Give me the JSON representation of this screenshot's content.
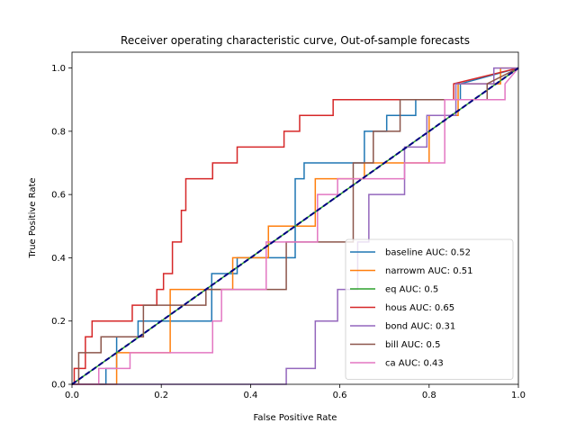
{
  "chart_data": {
    "type": "line",
    "title": "Receiver operating characteristic curve, Out-of-sample forecasts",
    "xlabel": "False Positive Rate",
    "ylabel": "True Positive Rate",
    "xlim": [
      0,
      1
    ],
    "ylim": [
      0,
      1.05
    ],
    "xticks": [
      "0.0",
      "0.2",
      "0.4",
      "0.6",
      "0.8",
      "1.0"
    ],
    "yticks": [
      "0.0",
      "0.2",
      "0.4",
      "0.6",
      "0.8",
      "1.0"
    ],
    "grid": false,
    "legend_position": "lower-right",
    "reference_line": {
      "x": [
        0,
        1
      ],
      "y": [
        0,
        1
      ],
      "color": "#000080",
      "style": "dashed"
    },
    "series": [
      {
        "name": "baseline AUC: 0.52",
        "color": "#1f77b4",
        "x": [
          0,
          0.076,
          0.076,
          0.1,
          0.1,
          0.148,
          0.148,
          0.313,
          0.313,
          0.37,
          0.37,
          0.5,
          0.5,
          0.52,
          0.52,
          0.655,
          0.655,
          0.705,
          0.705,
          0.77,
          0.77,
          0.87,
          0.87,
          1.0
        ],
        "y": [
          0,
          0,
          0.05,
          0.05,
          0.15,
          0.15,
          0.2,
          0.2,
          0.35,
          0.35,
          0.4,
          0.4,
          0.65,
          0.65,
          0.7,
          0.7,
          0.8,
          0.8,
          0.85,
          0.85,
          0.9,
          0.9,
          0.95,
          1.0
        ]
      },
      {
        "name": "narrowm AUC: 0.51",
        "color": "#ff7f0e",
        "x": [
          0,
          0.1,
          0.1,
          0.22,
          0.22,
          0.36,
          0.36,
          0.44,
          0.44,
          0.545,
          0.545,
          0.655,
          0.655,
          0.8,
          0.8,
          0.865,
          0.865,
          0.96,
          0.96,
          1.0
        ],
        "y": [
          0,
          0,
          0.1,
          0.1,
          0.3,
          0.3,
          0.4,
          0.4,
          0.5,
          0.5,
          0.65,
          0.65,
          0.7,
          0.7,
          0.85,
          0.85,
          0.95,
          0.95,
          1.0,
          1.0
        ]
      },
      {
        "name": "eq AUC: 0.5",
        "color": "#2ca02c",
        "x": [
          0,
          1
        ],
        "y": [
          0,
          1
        ]
      },
      {
        "name": "hous AUC: 0.65",
        "color": "#d62728",
        "x": [
          0,
          0.005,
          0.005,
          0.03,
          0.03,
          0.045,
          0.045,
          0.135,
          0.135,
          0.19,
          0.19,
          0.205,
          0.205,
          0.225,
          0.225,
          0.245,
          0.245,
          0.255,
          0.255,
          0.315,
          0.315,
          0.37,
          0.37,
          0.475,
          0.475,
          0.51,
          0.51,
          0.585,
          0.585,
          0.855,
          0.855,
          1.0
        ],
        "y": [
          0,
          0,
          0.05,
          0.05,
          0.15,
          0.15,
          0.2,
          0.2,
          0.25,
          0.25,
          0.3,
          0.3,
          0.35,
          0.35,
          0.45,
          0.45,
          0.55,
          0.55,
          0.65,
          0.65,
          0.7,
          0.7,
          0.75,
          0.75,
          0.8,
          0.8,
          0.85,
          0.85,
          0.9,
          0.9,
          0.95,
          1.0
        ]
      },
      {
        "name": "bond AUC: 0.31",
        "color": "#9467bd",
        "x": [
          0,
          0.48,
          0.48,
          0.545,
          0.545,
          0.595,
          0.595,
          0.64,
          0.64,
          0.665,
          0.665,
          0.745,
          0.745,
          0.795,
          0.795,
          0.86,
          0.86,
          0.945,
          0.945,
          1.0
        ],
        "y": [
          0,
          0,
          0.05,
          0.05,
          0.2,
          0.2,
          0.3,
          0.3,
          0.45,
          0.45,
          0.6,
          0.6,
          0.75,
          0.75,
          0.85,
          0.85,
          0.95,
          0.95,
          1.0,
          1.0
        ]
      },
      {
        "name": "bill AUC: 0.5",
        "color": "#8c564b",
        "x": [
          0,
          0.015,
          0.015,
          0.065,
          0.065,
          0.16,
          0.16,
          0.3,
          0.3,
          0.48,
          0.48,
          0.63,
          0.63,
          0.675,
          0.675,
          0.735,
          0.735,
          0.79,
          0.79,
          0.93,
          0.93,
          1.0
        ],
        "y": [
          0,
          0,
          0.1,
          0.1,
          0.15,
          0.15,
          0.25,
          0.25,
          0.3,
          0.3,
          0.45,
          0.45,
          0.7,
          0.7,
          0.8,
          0.8,
          0.9,
          0.9,
          0.9,
          0.9,
          0.95,
          1.0
        ]
      },
      {
        "name": "ca AUC: 0.43",
        "color": "#e377c2",
        "x": [
          0,
          0.06,
          0.06,
          0.13,
          0.13,
          0.315,
          0.315,
          0.335,
          0.335,
          0.435,
          0.435,
          0.55,
          0.55,
          0.595,
          0.595,
          0.745,
          0.745,
          0.835,
          0.835,
          0.97,
          0.97,
          1.0
        ],
        "y": [
          0,
          0,
          0.05,
          0.05,
          0.1,
          0.1,
          0.2,
          0.2,
          0.3,
          0.3,
          0.45,
          0.45,
          0.6,
          0.6,
          0.65,
          0.65,
          0.7,
          0.7,
          0.9,
          0.9,
          0.95,
          1.0
        ]
      }
    ]
  }
}
